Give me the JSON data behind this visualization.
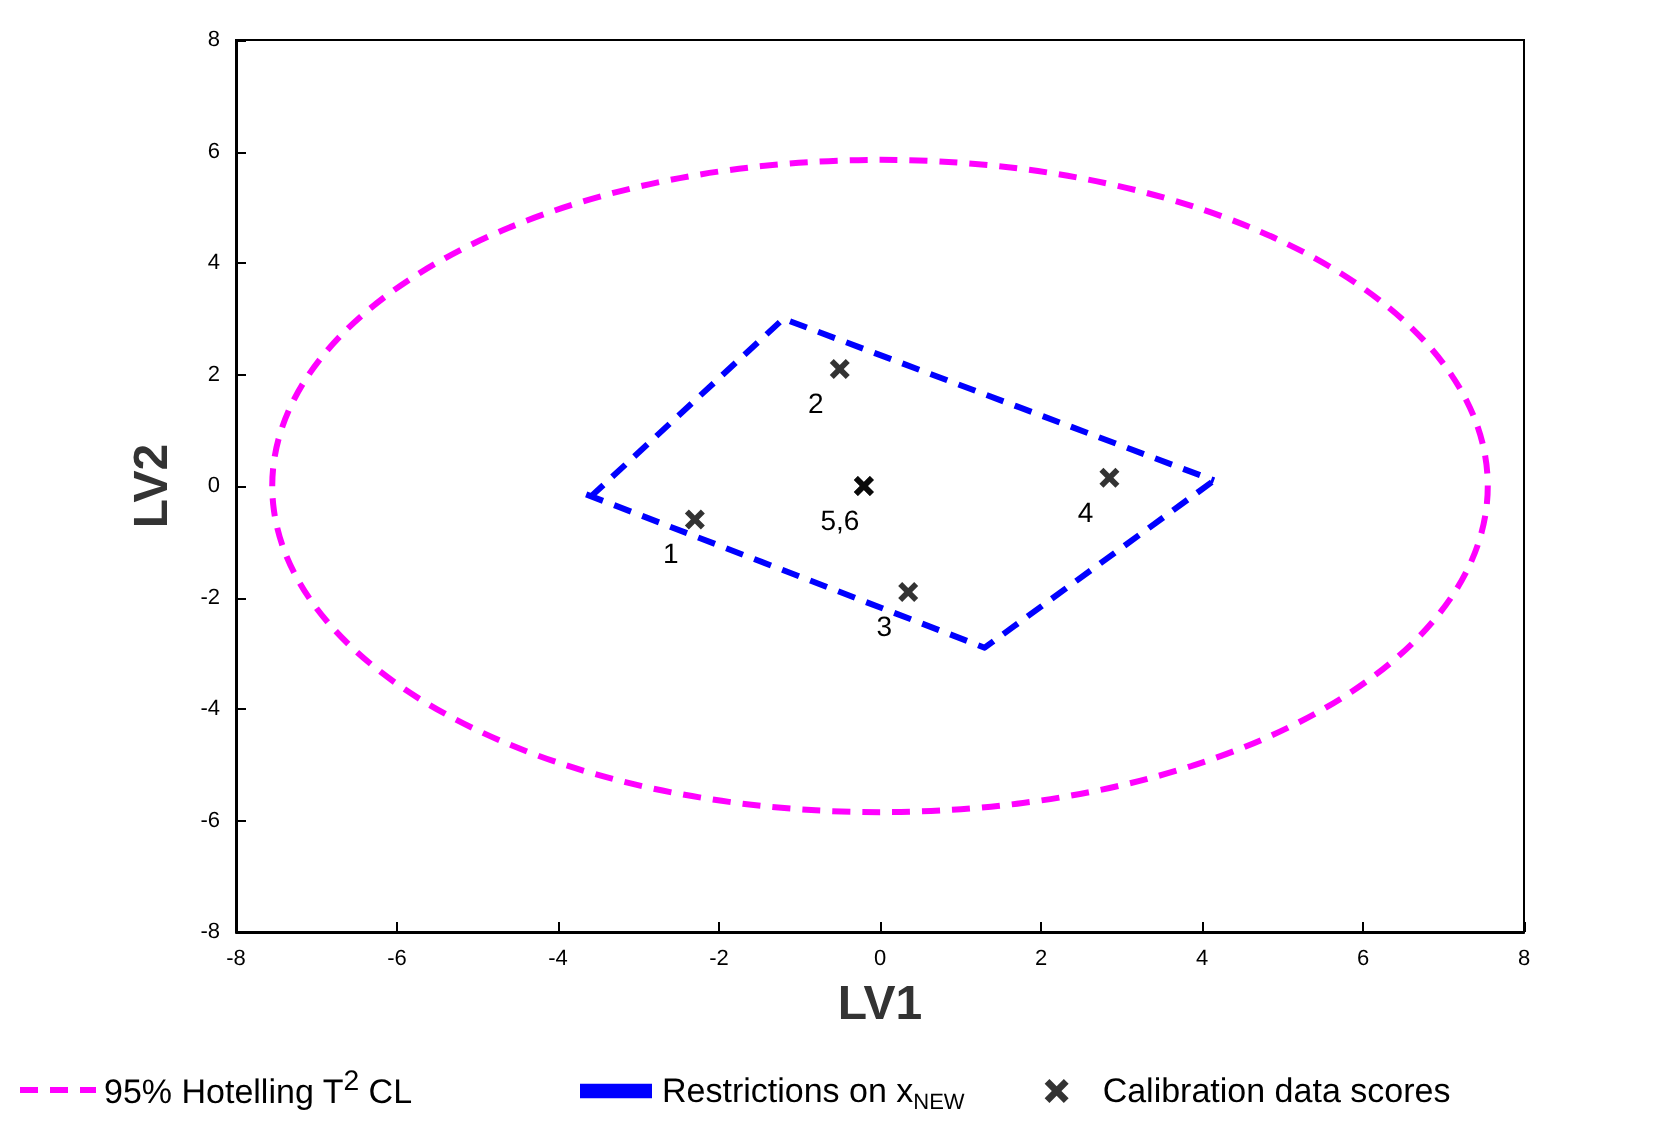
{
  "chart_data": {
    "type": "line",
    "xlabel": "LV1",
    "ylabel": "LV2",
    "xlim": [
      -8,
      8
    ],
    "xticks": [
      -8,
      -6,
      -4,
      -2,
      0,
      2,
      4,
      6,
      8
    ],
    "ylim": [
      -8,
      8
    ],
    "yticks": [
      -8,
      -6,
      -4,
      -2,
      0,
      2,
      4,
      6,
      8
    ],
    "grid": false,
    "legend": "bottom",
    "line_style": "dashed",
    "series": [
      {
        "name": "Restrictions on x$_{NEW}$",
        "color": "#0000ff",
        "x": [
          -3.6,
          -1.2,
          4.15
        ],
        "values": [
          -0.2,
          3.0,
          0.1
        ]
      },
      {
        "color": "#0000ff",
        "x": [
          -3.65,
          1.3,
          4.15
        ],
        "values": [
          -0.15,
          -2.9,
          0.1
        ]
      },
      {
        "name": "Calibration data scores",
        "color": "#000000",
        "type": "scatter",
        "marker": "cross",
        "x": [
          -2.3,
          -0.5,
          0.35,
          2.85,
          -0.2,
          -0.2
        ],
        "values": [
          -0.6,
          2.1,
          -1.9,
          0.15,
          0,
          0
        ]
      }
    ],
    "annotations": [
      "95% Hotelling T$^{2}$ CL",
      {
        "text": "1",
        "x": -2.3,
        "y": -0.6
      },
      {
        "text": "2",
        "x": -0.5,
        "y": 2.1
      },
      {
        "text": "3",
        "x": 0.35,
        "y": -1.9
      },
      {
        "text": "4",
        "x": 2.85,
        "y": 0.15
      },
      {
        "text": "5,6",
        "x": -0.2,
        "y": 0
      }
    ]
  }
}
